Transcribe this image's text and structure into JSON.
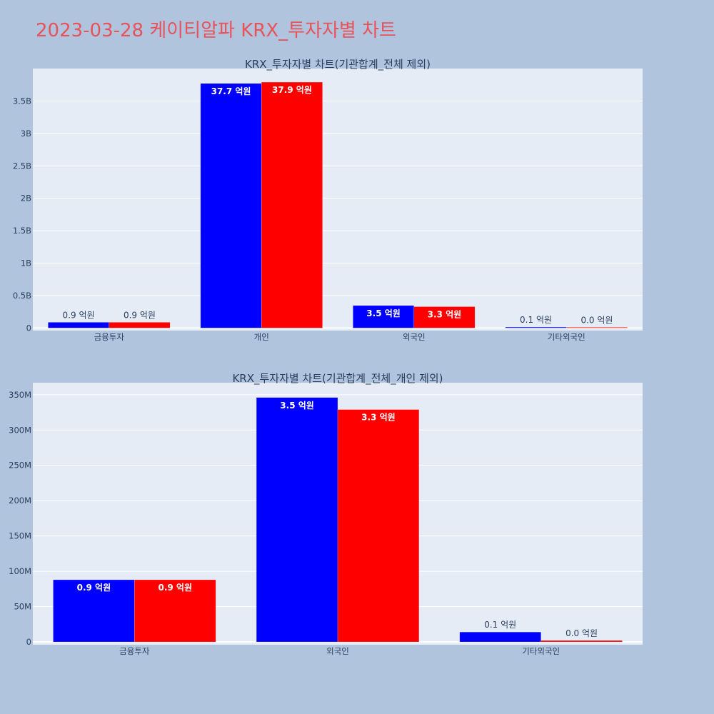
{
  "page_title": "2023-03-28 케이티알파 KRX_투자자별 차트",
  "colors": {
    "background": "#b0c4de",
    "plot_bg": "#e5ecf6",
    "title": "#e8525b",
    "series_1": "#0000ff",
    "series_2": "#ff0000"
  },
  "chart_data": [
    {
      "type": "bar",
      "title": "KRX_투자자별 차트(기관합계_전체 제외)",
      "categories": [
        "금융투자",
        "개인",
        "외국인",
        "기타외국인"
      ],
      "series": [
        {
          "color": "#0000ff",
          "values": [
            88000000,
            3770000000,
            346000000,
            14000000
          ],
          "labels": [
            "0.9 억원",
            "37.7 억원",
            "3.5 억원",
            "0.1 억원"
          ]
        },
        {
          "color": "#ff0000",
          "values": [
            88000000,
            3790000000,
            329000000,
            2000000
          ],
          "labels": [
            "0.9 억원",
            "37.9 억원",
            "3.3 억원",
            "0.0 억원"
          ]
        }
      ],
      "yticks": [
        {
          "value": 0,
          "label": "0"
        },
        {
          "value": 500000000,
          "label": "0.5B"
        },
        {
          "value": 1000000000,
          "label": "1B"
        },
        {
          "value": 1500000000,
          "label": "1.5B"
        },
        {
          "value": 2000000000,
          "label": "2B"
        },
        {
          "value": 2500000000,
          "label": "2.5B"
        },
        {
          "value": 3000000000,
          "label": "3B"
        },
        {
          "value": 3500000000,
          "label": "3.5B"
        }
      ],
      "ylim": [
        -40000000,
        4000000000
      ],
      "grid": true
    },
    {
      "type": "bar",
      "title": "KRX_투자자별 차트(기관합계_전체_개인 제외)",
      "categories": [
        "금융투자",
        "외국인",
        "기타외국인"
      ],
      "series": [
        {
          "color": "#0000ff",
          "values": [
            88000000,
            346000000,
            14000000
          ],
          "labels": [
            "0.9 억원",
            "3.5 억원",
            "0.1 억원"
          ]
        },
        {
          "color": "#ff0000",
          "values": [
            88000000,
            329000000,
            2000000
          ],
          "labels": [
            "0.9 억원",
            "3.3 억원",
            "0.0 억원"
          ]
        }
      ],
      "yticks": [
        {
          "value": 0,
          "label": "0"
        },
        {
          "value": 50000000,
          "label": "50M"
        },
        {
          "value": 100000000,
          "label": "100M"
        },
        {
          "value": 150000000,
          "label": "150M"
        },
        {
          "value": 200000000,
          "label": "200M"
        },
        {
          "value": 250000000,
          "label": "250M"
        },
        {
          "value": 300000000,
          "label": "300M"
        },
        {
          "value": 350000000,
          "label": "350M"
        }
      ],
      "ylim": [
        -4000000,
        367000000
      ],
      "grid": true
    }
  ]
}
